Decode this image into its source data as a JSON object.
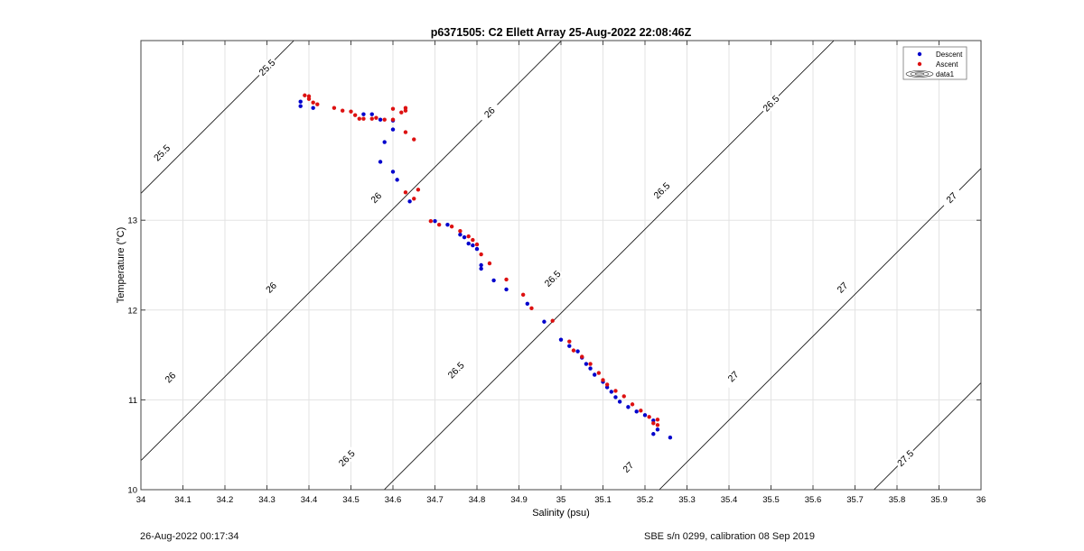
{
  "chart_data": {
    "type": "scatter",
    "title": "p6371505: C2 Ellett Array 25-Aug-2022 22:08:46Z",
    "xlabel": "Salinity (psu)",
    "ylabel": "Temperature (°C)",
    "xlim": [
      34,
      36
    ],
    "ylim": [
      10,
      15
    ],
    "xticks": [
      "34",
      "34.1",
      "34.2",
      "34.3",
      "34.4",
      "34.5",
      "34.6",
      "34.7",
      "34.8",
      "34.9",
      "35",
      "35.1",
      "35.2",
      "35.3",
      "35.4",
      "35.5",
      "35.6",
      "35.7",
      "35.8",
      "35.9",
      "36"
    ],
    "yticks": [
      "10",
      "11",
      "12",
      "13"
    ],
    "grid": true,
    "legend_position": "top-right",
    "legend": [
      "Descent",
      "Ascent",
      "data1"
    ],
    "colors": {
      "descent": "#0000cc",
      "ascent": "#dd1111",
      "contour": "#000000",
      "grid": "#e3e3e3"
    },
    "series": [
      {
        "name": "Descent",
        "points": [
          [
            34.38,
            14.32
          ],
          [
            34.38,
            14.27
          ],
          [
            34.41,
            14.25
          ],
          [
            34.53,
            14.18
          ],
          [
            34.55,
            14.18
          ],
          [
            34.57,
            14.12
          ],
          [
            34.6,
            14.11
          ],
          [
            34.6,
            14.01
          ],
          [
            34.58,
            13.87
          ],
          [
            34.57,
            13.65
          ],
          [
            34.6,
            13.54
          ],
          [
            34.61,
            13.45
          ],
          [
            34.64,
            13.21
          ],
          [
            34.7,
            12.99
          ],
          [
            34.73,
            12.95
          ],
          [
            34.76,
            12.84
          ],
          [
            34.77,
            12.81
          ],
          [
            34.78,
            12.74
          ],
          [
            34.79,
            12.72
          ],
          [
            34.8,
            12.68
          ],
          [
            34.81,
            12.5
          ],
          [
            34.81,
            12.46
          ],
          [
            34.84,
            12.33
          ],
          [
            34.87,
            12.23
          ],
          [
            34.92,
            12.07
          ],
          [
            34.96,
            11.87
          ],
          [
            35.0,
            11.67
          ],
          [
            35.02,
            11.6
          ],
          [
            35.04,
            11.54
          ],
          [
            35.05,
            11.47
          ],
          [
            35.06,
            11.4
          ],
          [
            35.07,
            11.35
          ],
          [
            35.08,
            11.28
          ],
          [
            35.1,
            11.2
          ],
          [
            35.11,
            11.14
          ],
          [
            35.12,
            11.09
          ],
          [
            35.13,
            11.03
          ],
          [
            35.14,
            10.98
          ],
          [
            35.16,
            10.92
          ],
          [
            35.18,
            10.87
          ],
          [
            35.2,
            10.83
          ],
          [
            35.22,
            10.77
          ],
          [
            35.22,
            10.62
          ],
          [
            35.23,
            10.67
          ],
          [
            35.26,
            10.58
          ]
        ]
      },
      {
        "name": "Ascent",
        "points": [
          [
            34.39,
            14.39
          ],
          [
            34.4,
            14.38
          ],
          [
            34.4,
            14.35
          ],
          [
            34.41,
            14.31
          ],
          [
            34.42,
            14.29
          ],
          [
            34.46,
            14.25
          ],
          [
            34.48,
            14.22
          ],
          [
            34.5,
            14.21
          ],
          [
            34.51,
            14.17
          ],
          [
            34.52,
            14.13
          ],
          [
            34.53,
            14.13
          ],
          [
            34.55,
            14.13
          ],
          [
            34.56,
            14.14
          ],
          [
            34.58,
            14.12
          ],
          [
            34.6,
            14.12
          ],
          [
            34.6,
            14.24
          ],
          [
            34.62,
            14.2
          ],
          [
            34.63,
            14.25
          ],
          [
            34.63,
            14.22
          ],
          [
            34.63,
            13.98
          ],
          [
            34.65,
            13.9
          ],
          [
            34.63,
            13.31
          ],
          [
            34.65,
            13.24
          ],
          [
            34.66,
            13.34
          ],
          [
            34.69,
            12.99
          ],
          [
            34.71,
            12.95
          ],
          [
            34.74,
            12.93
          ],
          [
            34.76,
            12.88
          ],
          [
            34.78,
            12.82
          ],
          [
            34.79,
            12.78
          ],
          [
            34.8,
            12.73
          ],
          [
            34.81,
            12.62
          ],
          [
            34.83,
            12.52
          ],
          [
            34.87,
            12.34
          ],
          [
            34.91,
            12.17
          ],
          [
            34.93,
            12.02
          ],
          [
            34.98,
            11.88
          ],
          [
            35.02,
            11.65
          ],
          [
            35.03,
            11.55
          ],
          [
            35.05,
            11.48
          ],
          [
            35.07,
            11.4
          ],
          [
            35.09,
            11.3
          ],
          [
            35.1,
            11.22
          ],
          [
            35.11,
            11.17
          ],
          [
            35.13,
            11.1
          ],
          [
            35.15,
            11.04
          ],
          [
            35.17,
            10.95
          ],
          [
            35.19,
            10.88
          ],
          [
            35.21,
            10.81
          ],
          [
            35.23,
            10.78
          ],
          [
            35.22,
            10.74
          ],
          [
            35.23,
            10.72
          ]
        ]
      }
    ],
    "contours": [
      {
        "level": "25.5",
        "labels": [
          [
            34.3,
            14.7
          ],
          [
            34.05,
            13.75
          ]
        ]
      },
      {
        "level": "26",
        "labels": [
          [
            34.83,
            14.2
          ],
          [
            34.56,
            13.25
          ],
          [
            34.31,
            12.25
          ],
          [
            34.07,
            11.25
          ]
        ]
      },
      {
        "level": "26.5",
        "labels": [
          [
            35.5,
            14.3
          ],
          [
            35.24,
            13.33
          ],
          [
            34.98,
            12.35
          ],
          [
            34.75,
            11.33
          ],
          [
            34.49,
            10.35
          ]
        ]
      },
      {
        "level": "27",
        "labels": [
          [
            35.93,
            13.25
          ],
          [
            35.67,
            12.25
          ],
          [
            35.41,
            11.26
          ],
          [
            35.16,
            10.25
          ]
        ]
      },
      {
        "level": "27.5",
        "labels": [
          [
            35.82,
            10.35
          ]
        ]
      }
    ]
  },
  "footer": {
    "left": "26-Aug-2022 00:17:34",
    "right": "SBE s/n 0299, calibration 08 Sep 2019"
  }
}
